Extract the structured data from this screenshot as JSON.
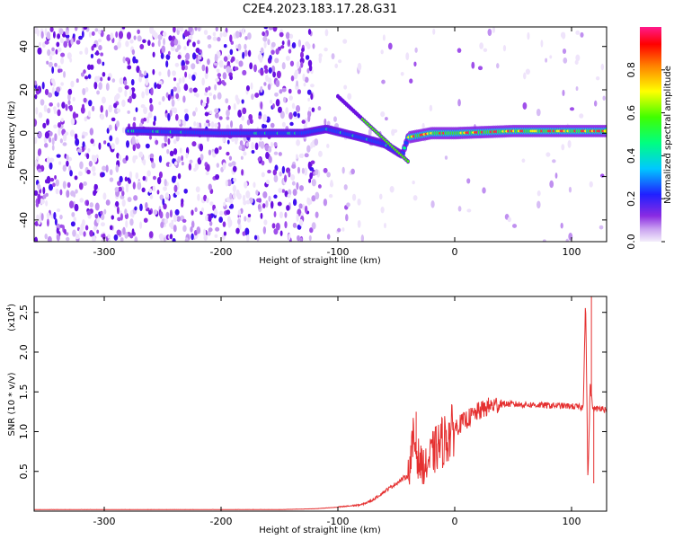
{
  "title": "C2E4.2023.183.17.28.G31",
  "colors": {
    "snr_line": "#e53030",
    "plot_border": "#000000",
    "background": "#ffffff"
  },
  "chart_data": [
    {
      "type": "heatmap",
      "title": "C2E4.2023.183.17.28.G31",
      "xlabel": "Height of straight line (km)",
      "ylabel": "Frequency (Hz)",
      "xlim": [
        -360,
        130
      ],
      "ylim": [
        -50,
        49
      ],
      "x_ticks": [
        -300,
        -200,
        -100,
        0,
        100
      ],
      "y_ticks": [
        -40,
        -20,
        0,
        20,
        40
      ],
      "colorbar": {
        "label": "Normalized spectral amplitude",
        "range": [
          0,
          1
        ],
        "ticks": [
          0.0,
          0.2,
          0.4,
          0.6,
          0.8
        ],
        "colormap": "rainbow (purple-blue-cyan-green-yellow-red-magenta)"
      },
      "ridge": {
        "description": "main spectral line near 0 Hz",
        "points": [
          [
            -270,
            1
          ],
          [
            -200,
            0
          ],
          [
            -130,
            0
          ],
          [
            -110,
            2
          ],
          [
            -80,
            -2
          ],
          [
            -60,
            -5
          ],
          [
            -45,
            -10
          ],
          [
            -40,
            -2
          ],
          [
            -20,
            0
          ],
          [
            0,
            0
          ],
          [
            50,
            1
          ],
          [
            100,
            1
          ],
          [
            130,
            1
          ]
        ]
      }
    },
    {
      "type": "line",
      "xlabel": "Height of straight line (km)",
      "ylabel": "SNR (10 * v/v)",
      "y_scale_note": "(x10^4)",
      "xlim": [
        -360,
        130
      ],
      "ylim": [
        0,
        2.7
      ],
      "x_ticks": [
        -300,
        -200,
        -100,
        0,
        100
      ],
      "y_ticks": [
        0.5,
        1.0,
        1.5,
        2.0,
        2.5
      ],
      "series": [
        {
          "x": [
            -360,
            -300,
            -250,
            -200,
            -150,
            -120,
            -100,
            -80,
            -70,
            -60,
            -50,
            -40,
            -35,
            -30,
            -25,
            -20,
            -15,
            -10,
            -5,
            0,
            10,
            20,
            30,
            40,
            60,
            80,
            100,
            110,
            112,
            114,
            116,
            118,
            120,
            125,
            130
          ],
          "y": [
            0.02,
            0.02,
            0.02,
            0.02,
            0.02,
            0.03,
            0.05,
            0.08,
            0.14,
            0.25,
            0.35,
            0.45,
            0.9,
            0.6,
            0.55,
            0.7,
            0.8,
            0.88,
            0.95,
            1.05,
            1.15,
            1.25,
            1.32,
            1.35,
            1.34,
            1.33,
            1.32,
            1.3,
            2.7,
            0.35,
            1.6,
            1.3,
            1.28,
            1.3,
            1.27
          ]
        }
      ]
    }
  ]
}
